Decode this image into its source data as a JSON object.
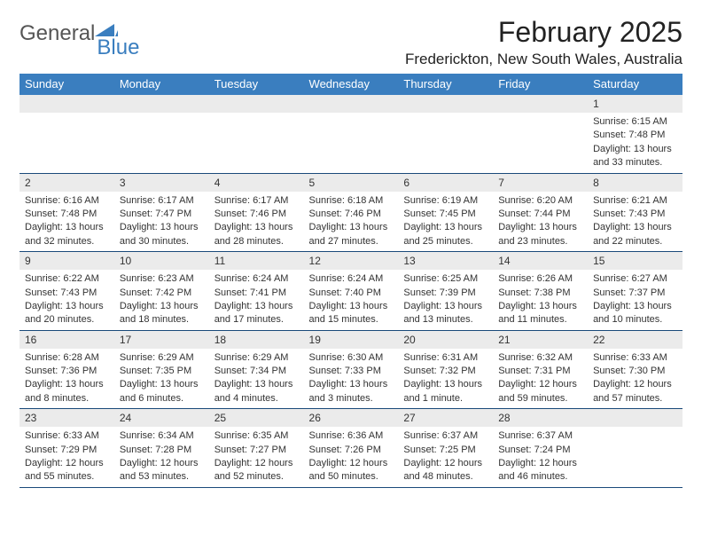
{
  "logo": {
    "word1": "General",
    "word2": "Blue"
  },
  "title": "February 2025",
  "location": "Frederickton, New South Wales, Australia",
  "colors": {
    "header_bg": "#3a7ebf",
    "header_fg": "#ffffff",
    "daynum_bg": "#ebebeb",
    "row_border": "#1a4a7a",
    "logo_gray": "#555555",
    "logo_blue": "#3a7ebf"
  },
  "day_headers": [
    "Sunday",
    "Monday",
    "Tuesday",
    "Wednesday",
    "Thursday",
    "Friday",
    "Saturday"
  ],
  "weeks": [
    [
      null,
      null,
      null,
      null,
      null,
      null,
      {
        "d": "1",
        "sr": "Sunrise: 6:15 AM",
        "ss": "Sunset: 7:48 PM",
        "dl": "Daylight: 13 hours and 33 minutes."
      }
    ],
    [
      {
        "d": "2",
        "sr": "Sunrise: 6:16 AM",
        "ss": "Sunset: 7:48 PM",
        "dl": "Daylight: 13 hours and 32 minutes."
      },
      {
        "d": "3",
        "sr": "Sunrise: 6:17 AM",
        "ss": "Sunset: 7:47 PM",
        "dl": "Daylight: 13 hours and 30 minutes."
      },
      {
        "d": "4",
        "sr": "Sunrise: 6:17 AM",
        "ss": "Sunset: 7:46 PM",
        "dl": "Daylight: 13 hours and 28 minutes."
      },
      {
        "d": "5",
        "sr": "Sunrise: 6:18 AM",
        "ss": "Sunset: 7:46 PM",
        "dl": "Daylight: 13 hours and 27 minutes."
      },
      {
        "d": "6",
        "sr": "Sunrise: 6:19 AM",
        "ss": "Sunset: 7:45 PM",
        "dl": "Daylight: 13 hours and 25 minutes."
      },
      {
        "d": "7",
        "sr": "Sunrise: 6:20 AM",
        "ss": "Sunset: 7:44 PM",
        "dl": "Daylight: 13 hours and 23 minutes."
      },
      {
        "d": "8",
        "sr": "Sunrise: 6:21 AM",
        "ss": "Sunset: 7:43 PM",
        "dl": "Daylight: 13 hours and 22 minutes."
      }
    ],
    [
      {
        "d": "9",
        "sr": "Sunrise: 6:22 AM",
        "ss": "Sunset: 7:43 PM",
        "dl": "Daylight: 13 hours and 20 minutes."
      },
      {
        "d": "10",
        "sr": "Sunrise: 6:23 AM",
        "ss": "Sunset: 7:42 PM",
        "dl": "Daylight: 13 hours and 18 minutes."
      },
      {
        "d": "11",
        "sr": "Sunrise: 6:24 AM",
        "ss": "Sunset: 7:41 PM",
        "dl": "Daylight: 13 hours and 17 minutes."
      },
      {
        "d": "12",
        "sr": "Sunrise: 6:24 AM",
        "ss": "Sunset: 7:40 PM",
        "dl": "Daylight: 13 hours and 15 minutes."
      },
      {
        "d": "13",
        "sr": "Sunrise: 6:25 AM",
        "ss": "Sunset: 7:39 PM",
        "dl": "Daylight: 13 hours and 13 minutes."
      },
      {
        "d": "14",
        "sr": "Sunrise: 6:26 AM",
        "ss": "Sunset: 7:38 PM",
        "dl": "Daylight: 13 hours and 11 minutes."
      },
      {
        "d": "15",
        "sr": "Sunrise: 6:27 AM",
        "ss": "Sunset: 7:37 PM",
        "dl": "Daylight: 13 hours and 10 minutes."
      }
    ],
    [
      {
        "d": "16",
        "sr": "Sunrise: 6:28 AM",
        "ss": "Sunset: 7:36 PM",
        "dl": "Daylight: 13 hours and 8 minutes."
      },
      {
        "d": "17",
        "sr": "Sunrise: 6:29 AM",
        "ss": "Sunset: 7:35 PM",
        "dl": "Daylight: 13 hours and 6 minutes."
      },
      {
        "d": "18",
        "sr": "Sunrise: 6:29 AM",
        "ss": "Sunset: 7:34 PM",
        "dl": "Daylight: 13 hours and 4 minutes."
      },
      {
        "d": "19",
        "sr": "Sunrise: 6:30 AM",
        "ss": "Sunset: 7:33 PM",
        "dl": "Daylight: 13 hours and 3 minutes."
      },
      {
        "d": "20",
        "sr": "Sunrise: 6:31 AM",
        "ss": "Sunset: 7:32 PM",
        "dl": "Daylight: 13 hours and 1 minute."
      },
      {
        "d": "21",
        "sr": "Sunrise: 6:32 AM",
        "ss": "Sunset: 7:31 PM",
        "dl": "Daylight: 12 hours and 59 minutes."
      },
      {
        "d": "22",
        "sr": "Sunrise: 6:33 AM",
        "ss": "Sunset: 7:30 PM",
        "dl": "Daylight: 12 hours and 57 minutes."
      }
    ],
    [
      {
        "d": "23",
        "sr": "Sunrise: 6:33 AM",
        "ss": "Sunset: 7:29 PM",
        "dl": "Daylight: 12 hours and 55 minutes."
      },
      {
        "d": "24",
        "sr": "Sunrise: 6:34 AM",
        "ss": "Sunset: 7:28 PM",
        "dl": "Daylight: 12 hours and 53 minutes."
      },
      {
        "d": "25",
        "sr": "Sunrise: 6:35 AM",
        "ss": "Sunset: 7:27 PM",
        "dl": "Daylight: 12 hours and 52 minutes."
      },
      {
        "d": "26",
        "sr": "Sunrise: 6:36 AM",
        "ss": "Sunset: 7:26 PM",
        "dl": "Daylight: 12 hours and 50 minutes."
      },
      {
        "d": "27",
        "sr": "Sunrise: 6:37 AM",
        "ss": "Sunset: 7:25 PM",
        "dl": "Daylight: 12 hours and 48 minutes."
      },
      {
        "d": "28",
        "sr": "Sunrise: 6:37 AM",
        "ss": "Sunset: 7:24 PM",
        "dl": "Daylight: 12 hours and 46 minutes."
      },
      null
    ]
  ]
}
